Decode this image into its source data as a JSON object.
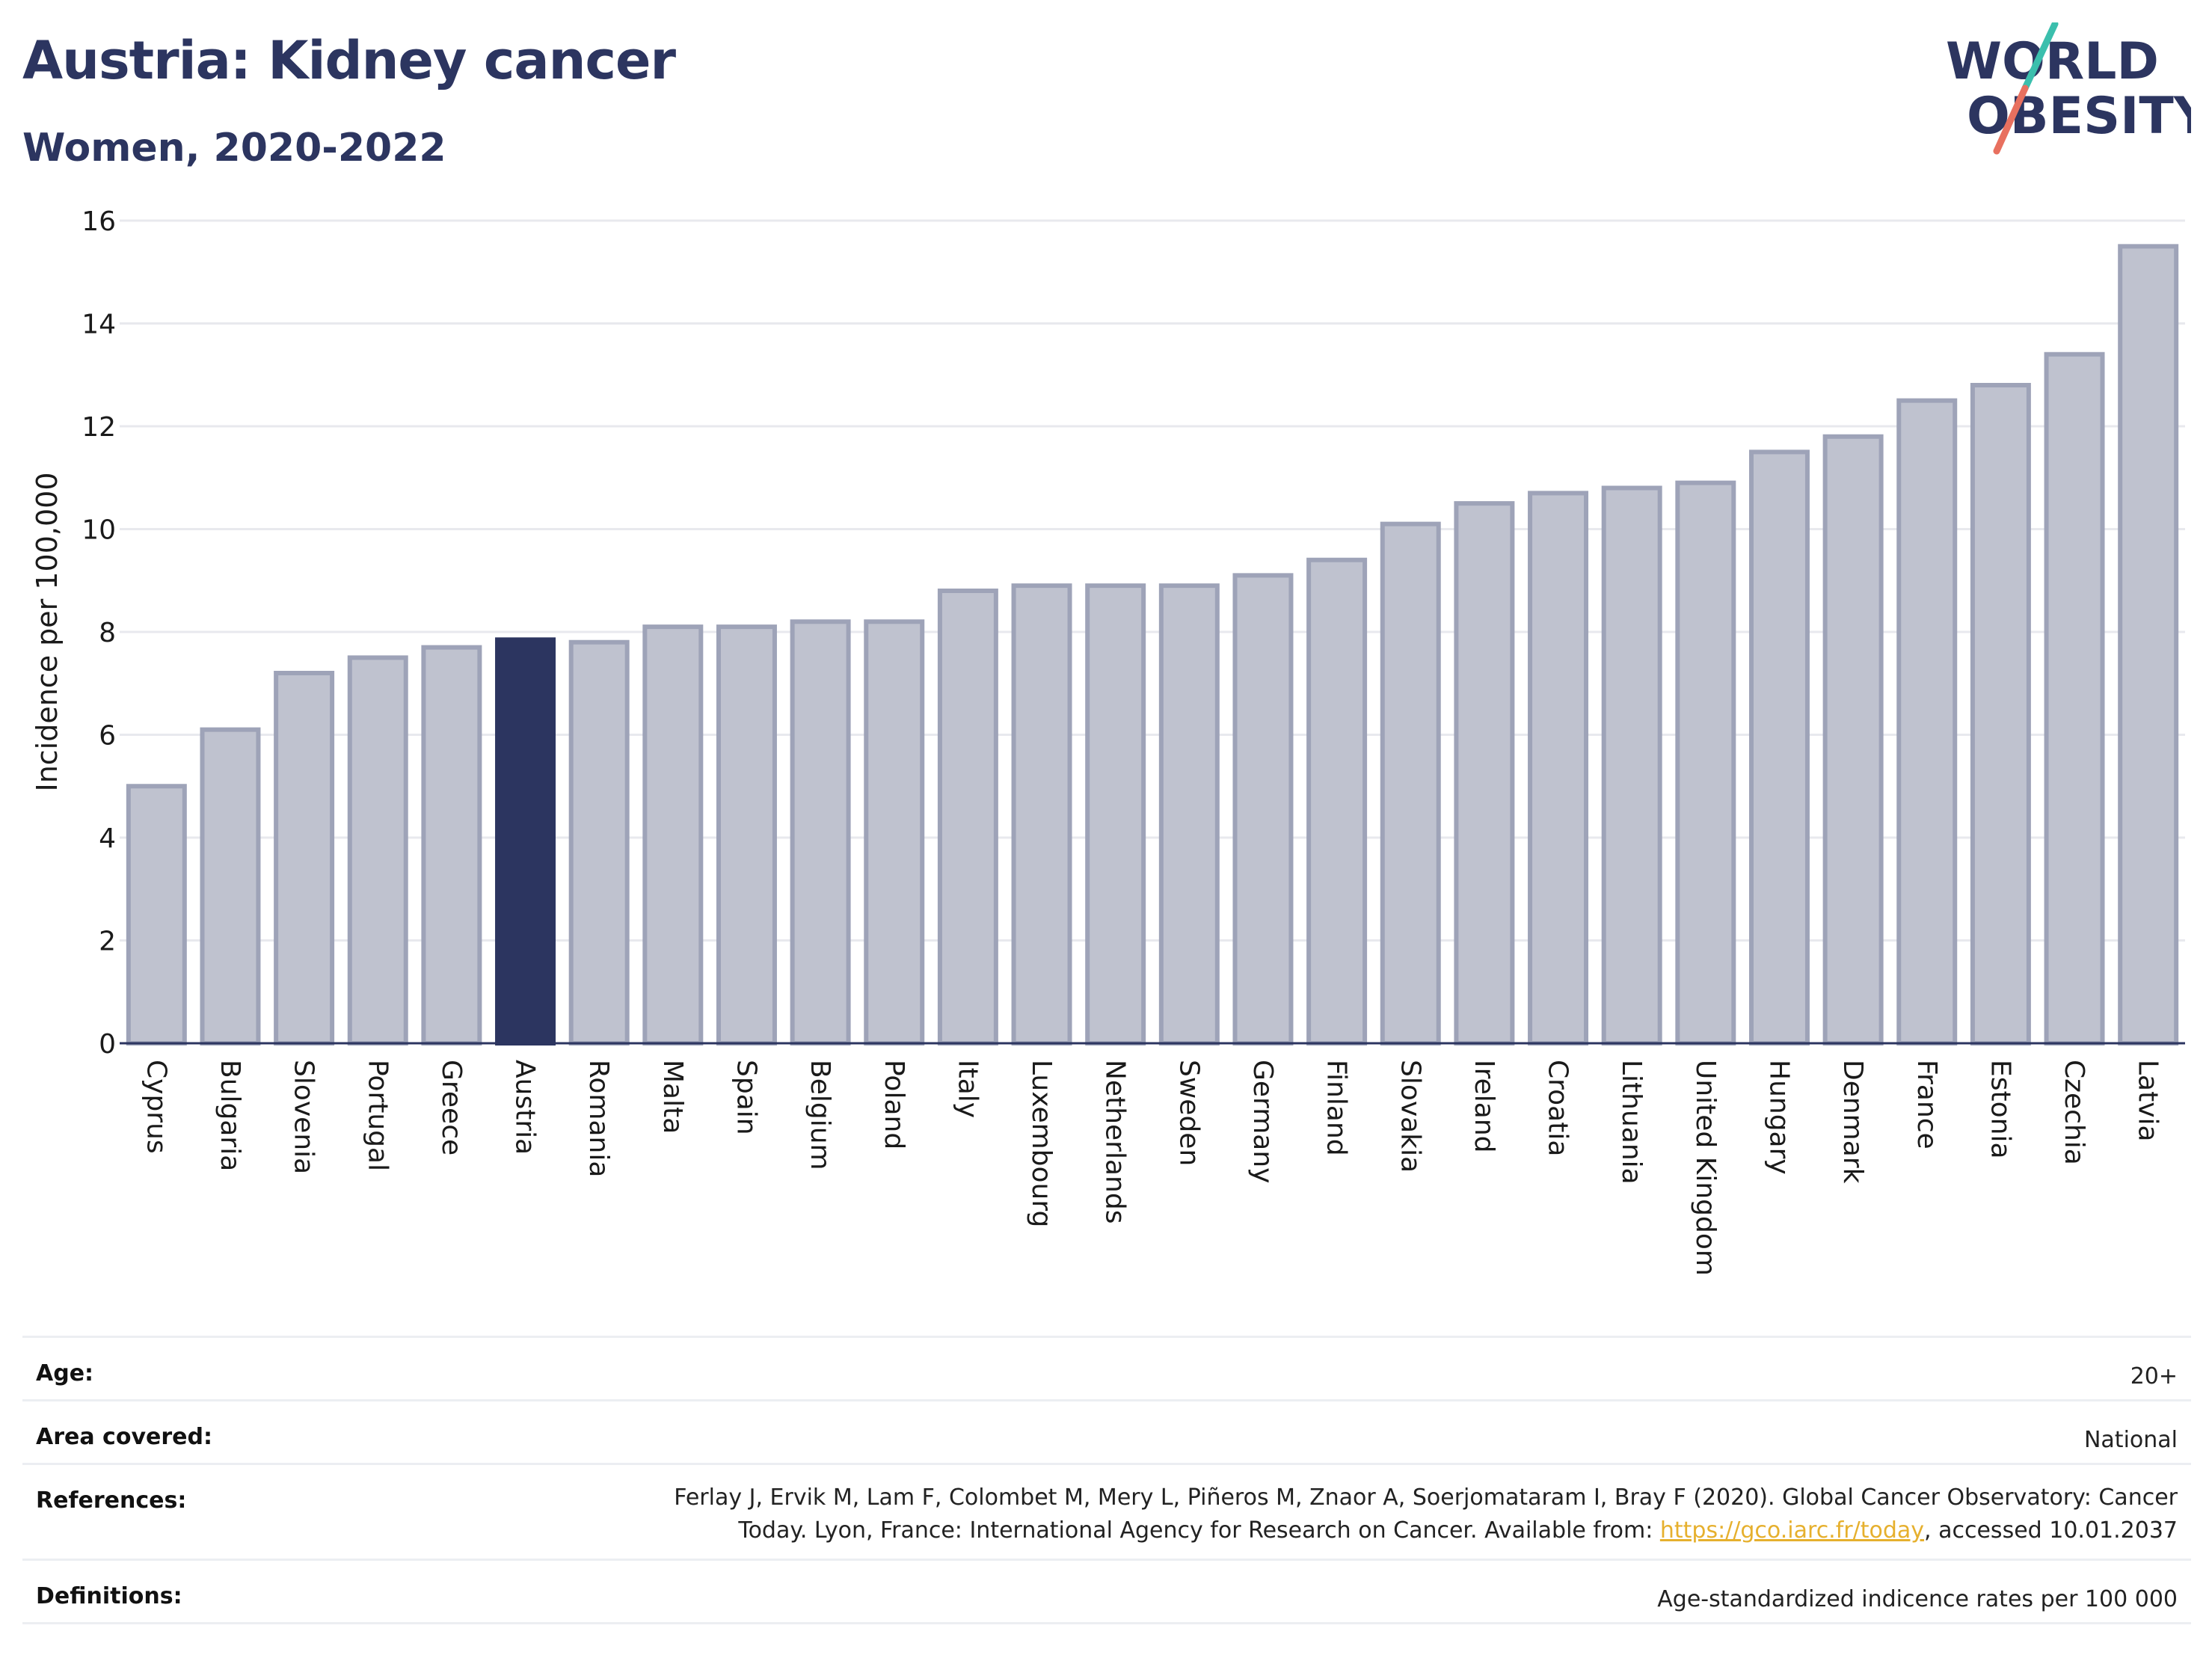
{
  "header": {
    "title": "Austria: Kidney cancer",
    "subtitle": "Women, 2020-2022"
  },
  "logo": {
    "line1": "WORLD",
    "line2": "OBESITY",
    "colors": {
      "text": "#2c3560",
      "slash_top": "#3bbfad",
      "slash_bottom": "#e8705f"
    }
  },
  "chart_data": {
    "type": "bar",
    "ylabel": "Incidence per 100,000",
    "xlabel": "",
    "ylim": [
      0,
      16
    ],
    "yticks": [
      0,
      2,
      4,
      6,
      8,
      10,
      12,
      14,
      16
    ],
    "grid": true,
    "highlight": "Austria",
    "colors": {
      "bar": "#bfc2cf",
      "bar_edge": "#9ea3b8",
      "highlight": "#2c3560",
      "grid": "#e8e9ee",
      "axis": "#2c3560"
    },
    "categories": [
      "Cyprus",
      "Bulgaria",
      "Slovenia",
      "Portugal",
      "Greece",
      "Austria",
      "Romania",
      "Malta",
      "Spain",
      "Belgium",
      "Poland",
      "Italy",
      "Luxembourg",
      "Netherlands",
      "Sweden",
      "Germany",
      "Finland",
      "Slovakia",
      "Ireland",
      "Croatia",
      "Lithuania",
      "United Kingdom",
      "Hungary",
      "Denmark",
      "France",
      "Estonia",
      "Czechia",
      "Latvia"
    ],
    "values": [
      5.0,
      6.1,
      7.2,
      7.5,
      7.7,
      7.85,
      7.8,
      8.1,
      8.1,
      8.2,
      8.2,
      8.8,
      8.9,
      8.9,
      8.9,
      9.1,
      9.4,
      10.1,
      10.5,
      10.7,
      10.8,
      10.9,
      11.5,
      11.8,
      12.5,
      12.8,
      13.4,
      15.5
    ]
  },
  "info": {
    "age": {
      "label": "Age:",
      "value": "20+"
    },
    "area": {
      "label": "Area covered:",
      "value": "National"
    },
    "references": {
      "label": "References:",
      "text_before": "Ferlay J, Ervik M, Lam F, Colombet M, Mery L, Piñeros M, Znaor A, Soerjomataram I, Bray F (2020). Global Cancer Observatory: Cancer Today. Lyon, France: International Agency for Research on Cancer. Available from: ",
      "link": "https://gco.iarc.fr/today",
      "text_after": ", accessed 10.01.2037"
    },
    "definitions": {
      "label": "Definitions:",
      "value": "Age-standardized indicence rates per 100 000"
    }
  }
}
